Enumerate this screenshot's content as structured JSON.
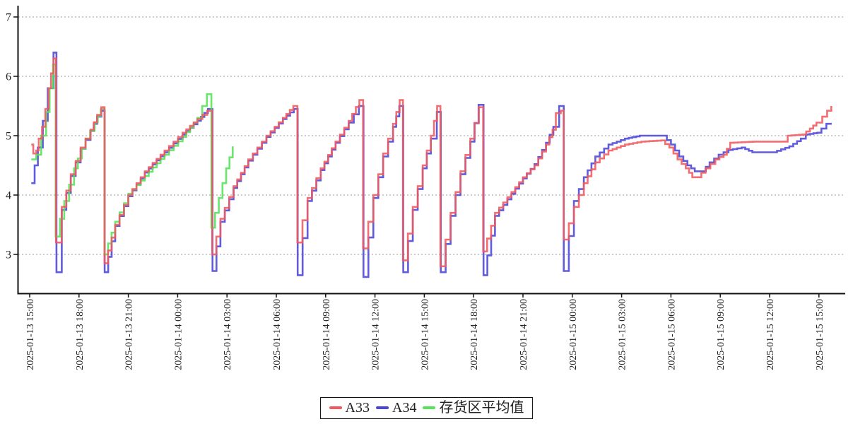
{
  "chart_data": {
    "type": "line",
    "title": "",
    "xlabel": "",
    "ylabel": "",
    "line_style": "step-after",
    "grid": "horizontal-dashed",
    "legend_position": "bottom-center-boxed",
    "x_axis": {
      "unit": "hours since 2025-01-13 15:00",
      "range_hours": [
        0,
        49.6
      ],
      "tick_hours": [
        0,
        3,
        6,
        9,
        12,
        15,
        18,
        21,
        24,
        27,
        30,
        33,
        36,
        39,
        42,
        45,
        48
      ],
      "tick_labels": [
        "2025-01-13 15:00",
        "2025-01-13 18:00",
        "2025-01-13 21:00",
        "2025-01-14 00:00",
        "2025-01-14 03:00",
        "2025-01-14 06:00",
        "2025-01-14 09:00",
        "2025-01-14 12:00",
        "2025-01-14 15:00",
        "2025-01-14 18:00",
        "2025-01-14 21:00",
        "2025-01-15 00:00",
        "2025-01-15 03:00",
        "2025-01-15 06:00",
        "2025-01-15 09:00",
        "2025-01-15 12:00",
        "2025-01-15 15:00"
      ]
    },
    "y_axis": {
      "ticks": [
        7,
        6,
        5,
        4,
        3
      ],
      "range": [
        2.3,
        7.2
      ]
    },
    "series": [
      {
        "name": "A33",
        "slug": "a33-line",
        "color": "#f05a5e",
        "z": 3,
        "points": [
          [
            0.1,
            4.85
          ],
          [
            0.22,
            4.7
          ],
          [
            0.4,
            4.75
          ],
          [
            0.55,
            4.95
          ],
          [
            0.75,
            5.15
          ],
          [
            0.95,
            5.45
          ],
          [
            1.15,
            5.8
          ],
          [
            1.3,
            6.05
          ],
          [
            1.45,
            6.3
          ],
          [
            1.6,
            3.2
          ],
          [
            1.95,
            3.8
          ],
          [
            2.5,
            4.35
          ],
          [
            3.1,
            4.8
          ],
          [
            3.7,
            5.1
          ],
          [
            4.1,
            5.35
          ],
          [
            4.35,
            5.48
          ],
          [
            4.55,
            2.85
          ],
          [
            5.2,
            3.5
          ],
          [
            6.0,
            4.0
          ],
          [
            7.0,
            4.4
          ],
          [
            8.2,
            4.75
          ],
          [
            9.3,
            5.05
          ],
          [
            10.2,
            5.28
          ],
          [
            10.8,
            5.42
          ],
          [
            11.1,
            3.0
          ],
          [
            11.6,
            3.6
          ],
          [
            12.4,
            4.15
          ],
          [
            13.3,
            4.6
          ],
          [
            14.4,
            5.0
          ],
          [
            15.4,
            5.3
          ],
          [
            16.03,
            5.5
          ],
          [
            16.28,
            3.2
          ],
          [
            16.9,
            3.95
          ],
          [
            17.7,
            4.45
          ],
          [
            18.6,
            4.9
          ],
          [
            19.4,
            5.25
          ],
          [
            20.05,
            5.6
          ],
          [
            20.28,
            3.1
          ],
          [
            20.9,
            4.0
          ],
          [
            21.5,
            4.7
          ],
          [
            22.1,
            5.2
          ],
          [
            22.5,
            5.6
          ],
          [
            22.7,
            2.9
          ],
          [
            23.3,
            3.8
          ],
          [
            23.9,
            4.5
          ],
          [
            24.4,
            5.0
          ],
          [
            24.78,
            5.5
          ],
          [
            24.98,
            2.8
          ],
          [
            25.6,
            3.7
          ],
          [
            26.2,
            4.4
          ],
          [
            26.8,
            4.95
          ],
          [
            27.32,
            5.48
          ],
          [
            27.58,
            3.05
          ],
          [
            28.3,
            3.7
          ],
          [
            29.3,
            4.05
          ],
          [
            30.0,
            4.3
          ],
          [
            30.7,
            4.5
          ],
          [
            31.4,
            4.85
          ],
          [
            31.8,
            5.1
          ],
          [
            32.0,
            5.38
          ],
          [
            32.3,
            5.42
          ],
          [
            32.48,
            3.25
          ],
          [
            33.1,
            3.8
          ],
          [
            33.7,
            4.2
          ],
          [
            34.4,
            4.55
          ],
          [
            35.2,
            4.75
          ],
          [
            36.2,
            4.85
          ],
          [
            37.2,
            4.9
          ],
          [
            38.4,
            4.92
          ],
          [
            38.9,
            4.8
          ],
          [
            39.4,
            4.6
          ],
          [
            39.9,
            4.45
          ],
          [
            40.3,
            4.3
          ],
          [
            40.6,
            4.3
          ],
          [
            41.1,
            4.45
          ],
          [
            41.7,
            4.6
          ],
          [
            42.2,
            4.68
          ],
          [
            42.6,
            4.88
          ],
          [
            44.0,
            4.9
          ],
          [
            45.9,
            4.9
          ],
          [
            46.1,
            5.0
          ],
          [
            47.0,
            5.02
          ],
          [
            47.45,
            5.12
          ],
          [
            47.85,
            5.22
          ],
          [
            48.2,
            5.32
          ],
          [
            48.5,
            5.42
          ],
          [
            48.75,
            5.5
          ]
        ]
      },
      {
        "name": "A34",
        "slug": "a34-line",
        "color": "#4a46d8",
        "z": 1,
        "points": [
          [
            0.1,
            4.2
          ],
          [
            0.5,
            4.8
          ],
          [
            0.8,
            5.25
          ],
          [
            1.1,
            5.8
          ],
          [
            1.45,
            6.4
          ],
          [
            1.63,
            2.7
          ],
          [
            1.95,
            3.75
          ],
          [
            2.5,
            4.32
          ],
          [
            3.1,
            4.78
          ],
          [
            3.7,
            5.08
          ],
          [
            4.1,
            5.32
          ],
          [
            4.36,
            5.42
          ],
          [
            4.56,
            2.7
          ],
          [
            5.2,
            3.48
          ],
          [
            6.0,
            3.98
          ],
          [
            7.0,
            4.38
          ],
          [
            8.2,
            4.72
          ],
          [
            9.3,
            5.02
          ],
          [
            10.2,
            5.25
          ],
          [
            10.84,
            5.45
          ],
          [
            11.12,
            2.72
          ],
          [
            11.6,
            3.55
          ],
          [
            12.4,
            4.12
          ],
          [
            13.3,
            4.58
          ],
          [
            14.4,
            4.98
          ],
          [
            15.4,
            5.28
          ],
          [
            16.06,
            5.45
          ],
          [
            16.3,
            2.65
          ],
          [
            16.9,
            3.9
          ],
          [
            17.7,
            4.42
          ],
          [
            18.6,
            4.88
          ],
          [
            19.4,
            5.22
          ],
          [
            20.02,
            5.5
          ],
          [
            20.3,
            2.62
          ],
          [
            20.9,
            3.95
          ],
          [
            21.5,
            4.65
          ],
          [
            22.1,
            5.15
          ],
          [
            22.48,
            5.5
          ],
          [
            22.72,
            2.7
          ],
          [
            23.3,
            3.75
          ],
          [
            23.9,
            4.45
          ],
          [
            24.4,
            4.95
          ],
          [
            24.76,
            5.4
          ],
          [
            25.0,
            2.7
          ],
          [
            25.6,
            3.65
          ],
          [
            26.2,
            4.35
          ],
          [
            26.8,
            4.9
          ],
          [
            27.3,
            5.52
          ],
          [
            27.6,
            2.65
          ],
          [
            28.3,
            3.65
          ],
          [
            29.3,
            4.02
          ],
          [
            30.0,
            4.28
          ],
          [
            30.7,
            4.52
          ],
          [
            31.4,
            4.88
          ],
          [
            31.85,
            5.15
          ],
          [
            32.2,
            5.5
          ],
          [
            32.48,
            2.72
          ],
          [
            33.1,
            3.9
          ],
          [
            33.7,
            4.3
          ],
          [
            34.4,
            4.65
          ],
          [
            35.2,
            4.85
          ],
          [
            36.2,
            4.95
          ],
          [
            37.1,
            5.0
          ],
          [
            38.5,
            5.0
          ],
          [
            39.0,
            4.85
          ],
          [
            39.5,
            4.65
          ],
          [
            40.0,
            4.5
          ],
          [
            40.45,
            4.4
          ],
          [
            40.9,
            4.4
          ],
          [
            41.35,
            4.55
          ],
          [
            41.9,
            4.68
          ],
          [
            42.5,
            4.76
          ],
          [
            43.3,
            4.8
          ],
          [
            43.95,
            4.72
          ],
          [
            45.2,
            4.72
          ],
          [
            46.2,
            4.82
          ],
          [
            46.9,
            4.95
          ],
          [
            47.2,
            5.02
          ],
          [
            47.9,
            5.05
          ],
          [
            48.15,
            5.12
          ],
          [
            48.45,
            5.2
          ],
          [
            48.78,
            5.2
          ]
        ]
      },
      {
        "name": "存货区平均值",
        "slug": "storage-area-average-line",
        "color": "#55e35a",
        "z": 2,
        "points": [
          [
            0.1,
            4.6
          ],
          [
            0.4,
            4.68
          ],
          [
            0.7,
            5.0
          ],
          [
            1.0,
            5.4
          ],
          [
            1.42,
            6.2
          ],
          [
            1.58,
            3.3
          ],
          [
            2.1,
            3.9
          ],
          [
            2.7,
            4.45
          ],
          [
            3.4,
            4.95
          ],
          [
            3.95,
            5.22
          ],
          [
            4.33,
            5.45
          ],
          [
            4.55,
            3.0
          ],
          [
            5.2,
            3.55
          ],
          [
            6.0,
            4.02
          ],
          [
            7.0,
            4.32
          ],
          [
            8.2,
            4.68
          ],
          [
            9.3,
            4.98
          ],
          [
            10.2,
            5.3
          ],
          [
            10.78,
            5.7
          ],
          [
            11.05,
            3.45
          ],
          [
            11.5,
            3.95
          ],
          [
            11.95,
            4.45
          ],
          [
            12.35,
            4.82
          ]
        ]
      }
    ]
  }
}
